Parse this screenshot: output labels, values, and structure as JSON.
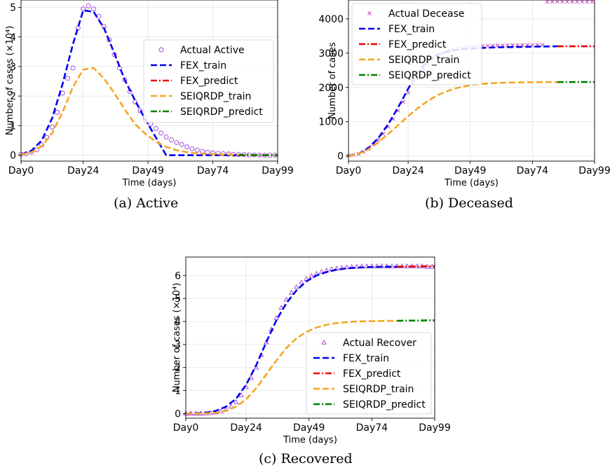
{
  "captions": [
    "(a)  Active",
    "(b)  Deceased",
    "(c)  Recovered"
  ],
  "chart_data": [
    {
      "type": "line",
      "title": "",
      "xlabel": "Time (days)",
      "ylabel": "Number of cases (×10⁴)",
      "xticks": [
        "Day0",
        "Day24",
        "Day49",
        "Day74",
        "Day99"
      ],
      "yticks": [
        "0",
        "1",
        "2",
        "3",
        "4",
        "5"
      ],
      "xlim": [
        0,
        99
      ],
      "ylim": [
        -0.2,
        5.25
      ],
      "grid": true,
      "legend_position": "center-right",
      "legend": [
        "Actual Active",
        "FEX_train",
        "FEX_predict",
        "SEIQRDP_train",
        "SEIQRDP_predict"
      ],
      "series": [
        {
          "name": "Actual Active",
          "style": "markers-circle",
          "color": "#9b3fd6",
          "x": [
            0,
            2,
            4,
            6,
            8,
            10,
            12,
            14,
            16,
            18,
            20,
            22,
            24,
            26,
            28,
            30,
            32,
            34,
            36,
            38,
            40,
            42,
            44,
            46,
            48,
            50,
            52,
            54,
            56,
            58,
            60,
            62,
            64,
            66,
            68,
            70,
            72,
            74,
            76,
            78,
            80,
            82,
            84,
            86,
            88,
            90,
            92,
            94,
            96,
            98
          ],
          "y": [
            0.03,
            0.05,
            0.1,
            0.18,
            0.35,
            0.6,
            0.95,
            1.45,
            2.1,
            2.6,
            2.95,
            4.3,
            4.95,
            5.05,
            4.95,
            4.7,
            4.35,
            3.9,
            3.4,
            2.95,
            2.55,
            2.15,
            1.8,
            1.5,
            1.25,
            1.05,
            0.9,
            0.75,
            0.62,
            0.52,
            0.43,
            0.36,
            0.28,
            0.22,
            0.17,
            0.13,
            0.1,
            0.08,
            0.06,
            0.05,
            0.04,
            0.03,
            0.02,
            0.02,
            0.01,
            0.01,
            0.0,
            0.0,
            0.0,
            0.0
          ]
        },
        {
          "name": "FEX_train",
          "style": "dashed",
          "color": "#0000ee",
          "x": [
            0,
            4,
            8,
            12,
            16,
            20,
            24,
            28,
            32,
            36,
            40,
            44,
            48,
            52,
            56,
            60,
            64,
            68,
            72,
            76,
            80,
            84
          ],
          "y": [
            0.02,
            0.15,
            0.5,
            1.25,
            2.4,
            3.75,
            4.9,
            4.85,
            4.3,
            3.45,
            2.55,
            1.85,
            1.2,
            0.6,
            0.0,
            0.0,
            0.0,
            0.0,
            0.0,
            0.0,
            0.0,
            0.0
          ]
        },
        {
          "name": "FEX_predict",
          "style": "dashdot",
          "color": "#ee0000",
          "x": [
            84,
            88,
            92,
            96,
            99
          ],
          "y": [
            0.0,
            0.0,
            0.0,
            0.0,
            0.0
          ]
        },
        {
          "name": "SEIQRDP_train",
          "style": "dashed",
          "color": "#f5a623",
          "x": [
            0,
            4,
            8,
            12,
            16,
            20,
            24,
            28,
            32,
            36,
            40,
            44,
            48,
            52,
            56,
            60,
            64,
            68,
            72,
            76,
            80,
            84
          ],
          "y": [
            0.02,
            0.1,
            0.3,
            0.75,
            1.45,
            2.3,
            2.9,
            2.95,
            2.6,
            2.1,
            1.55,
            1.05,
            0.72,
            0.46,
            0.28,
            0.17,
            0.1,
            0.06,
            0.04,
            0.03,
            0.02,
            0.01
          ]
        },
        {
          "name": "SEIQRDP_predict",
          "style": "dashdot",
          "color": "#008000",
          "x": [
            84,
            88,
            92,
            96,
            99
          ],
          "y": [
            0.01,
            0.01,
            0.0,
            0.0,
            0.0
          ]
        }
      ]
    },
    {
      "type": "line",
      "title": "",
      "xlabel": "Time (days)",
      "ylabel": "Number of cases",
      "xticks": [
        "Day0",
        "Day24",
        "Day49",
        "Day74",
        "Day99"
      ],
      "yticks": [
        "0",
        "1000",
        "2000",
        "3000",
        "4000"
      ],
      "xlim": [
        0,
        99
      ],
      "ylim": [
        -150,
        4550
      ],
      "grid": true,
      "legend_position": "upper-left",
      "legend": [
        "Actual Decease",
        "FEX_train",
        "FEX_predict",
        "SEIQRDP_train",
        "SEIQRDP_predict"
      ],
      "series": [
        {
          "name": "Actual Decease",
          "style": "markers-x",
          "color": "#c03fc0",
          "x": [
            0,
            2,
            4,
            6,
            8,
            10,
            12,
            14,
            16,
            18,
            20,
            22,
            24,
            26,
            28,
            30,
            32,
            34,
            36,
            38,
            40,
            42,
            44,
            46,
            48,
            50,
            52,
            54,
            56,
            58,
            60,
            62,
            64,
            66,
            68,
            70,
            72,
            74,
            76,
            78,
            80,
            82,
            84,
            86,
            88,
            90,
            92,
            94,
            96,
            98
          ],
          "y": [
            10,
            30,
            60,
            120,
            210,
            330,
            470,
            650,
            850,
            1080,
            1320,
            1580,
            1850,
            2120,
            2350,
            2540,
            2700,
            2830,
            2930,
            3000,
            3060,
            3100,
            3130,
            3160,
            3180,
            3195,
            3205,
            3210,
            3215,
            3220,
            3225,
            3228,
            3230,
            3232,
            3233,
            3234,
            3235,
            3236,
            3237,
            3238,
            4500,
            4500,
            4500,
            4500,
            4500,
            4500,
            4500,
            4500,
            4500,
            4500
          ]
        },
        {
          "name": "FEX_train",
          "style": "dashed",
          "color": "#0000ee",
          "x": [
            0,
            4,
            8,
            12,
            16,
            20,
            24,
            28,
            32,
            36,
            40,
            44,
            48,
            52,
            56,
            60,
            64,
            68,
            72,
            76,
            80,
            84
          ],
          "y": [
            0,
            60,
            230,
            520,
            930,
            1420,
            1960,
            2450,
            2780,
            2960,
            3050,
            3100,
            3130,
            3145,
            3160,
            3170,
            3175,
            3180,
            3185,
            3190,
            3195,
            3200
          ]
        },
        {
          "name": "FEX_predict",
          "style": "dashdot",
          "color": "#ee0000",
          "x": [
            84,
            88,
            92,
            96,
            99
          ],
          "y": [
            3200,
            3200,
            3200,
            3200,
            3200
          ]
        },
        {
          "name": "SEIQRDP_train",
          "style": "dashed",
          "color": "#f5a623",
          "x": [
            0,
            4,
            8,
            12,
            16,
            20,
            24,
            28,
            32,
            36,
            40,
            44,
            48,
            52,
            56,
            60,
            64,
            68,
            72,
            76,
            80,
            84
          ],
          "y": [
            0,
            60,
            190,
            400,
            640,
            900,
            1160,
            1400,
            1610,
            1780,
            1900,
            1990,
            2050,
            2090,
            2115,
            2130,
            2140,
            2145,
            2150,
            2152,
            2154,
            2155
          ]
        },
        {
          "name": "SEIQRDP_predict",
          "style": "dashdot",
          "color": "#008000",
          "x": [
            84,
            88,
            92,
            96,
            99
          ],
          "y": [
            2155,
            2156,
            2157,
            2158,
            2158
          ]
        }
      ]
    },
    {
      "type": "line",
      "title": "",
      "xlabel": "Time (days)",
      "ylabel": "Number of cases (×10⁴)",
      "xticks": [
        "Day0",
        "Day24",
        "Day49",
        "Day74",
        "Day99"
      ],
      "yticks": [
        "0",
        "1",
        "2",
        "3",
        "4",
        "5",
        "6"
      ],
      "xlim": [
        0,
        99
      ],
      "ylim": [
        -0.2,
        6.8
      ],
      "grid": true,
      "legend_position": "lower-right",
      "legend": [
        "Actual Recover",
        "FEX_train",
        "FEX_predict",
        "SEIQRDP_train",
        "SEIQRDP_predict"
      ],
      "series": [
        {
          "name": "Actual Recover",
          "style": "markers-triangle",
          "color": "#9b3fd6",
          "x": [
            0,
            2,
            4,
            6,
            8,
            10,
            12,
            14,
            16,
            18,
            20,
            22,
            24,
            26,
            28,
            30,
            32,
            34,
            36,
            38,
            40,
            42,
            44,
            46,
            48,
            50,
            52,
            54,
            56,
            58,
            60,
            62,
            64,
            66,
            68,
            70,
            72,
            74,
            76,
            78,
            80,
            82,
            84,
            86,
            88,
            90,
            92,
            94,
            96,
            98
          ],
          "y": [
            0,
            0,
            0,
            0,
            0.01,
            0.02,
            0.05,
            0.1,
            0.18,
            0.3,
            0.5,
            0.8,
            1.15,
            1.55,
            2.0,
            2.55,
            3.1,
            3.65,
            4.15,
            4.6,
            4.95,
            5.25,
            5.5,
            5.7,
            5.85,
            5.98,
            6.08,
            6.16,
            6.22,
            6.27,
            6.3,
            6.33,
            6.35,
            6.37,
            6.38,
            6.39,
            6.4,
            6.4,
            6.4,
            6.4,
            6.4,
            6.4,
            6.4,
            6.4,
            6.4,
            6.4,
            6.4,
            6.4,
            6.38,
            6.38
          ]
        },
        {
          "name": "FEX_train",
          "style": "dashed",
          "color": "#0000ee",
          "x": [
            0,
            4,
            8,
            12,
            16,
            20,
            24,
            28,
            32,
            36,
            40,
            44,
            48,
            52,
            56,
            60,
            64,
            68,
            72,
            76,
            80,
            84
          ],
          "y": [
            0,
            0.01,
            0.04,
            0.12,
            0.3,
            0.65,
            1.25,
            2.1,
            3.1,
            4.05,
            4.8,
            5.35,
            5.75,
            6.0,
            6.15,
            6.25,
            6.31,
            6.34,
            6.36,
            6.37,
            6.38,
            6.38
          ]
        },
        {
          "name": "FEX_predict",
          "style": "dashdot",
          "color": "#ee0000",
          "x": [
            84,
            88,
            92,
            96,
            99
          ],
          "y": [
            6.38,
            6.39,
            6.39,
            6.4,
            6.4
          ]
        },
        {
          "name": "SEIQRDP_train",
          "style": "dashed",
          "color": "#f5a623",
          "x": [
            0,
            4,
            8,
            12,
            16,
            20,
            24,
            28,
            32,
            36,
            40,
            44,
            48,
            52,
            56,
            60,
            64,
            68,
            72,
            76,
            80,
            84
          ],
          "y": [
            0,
            0.0,
            0.01,
            0.04,
            0.12,
            0.3,
            0.62,
            1.1,
            1.7,
            2.3,
            2.85,
            3.27,
            3.55,
            3.74,
            3.86,
            3.93,
            3.97,
            4.0,
            4.01,
            4.02,
            4.03,
            4.03
          ]
        },
        {
          "name": "SEIQRDP_predict",
          "style": "dashdot",
          "color": "#008000",
          "x": [
            84,
            88,
            92,
            96,
            99
          ],
          "y": [
            4.03,
            4.04,
            4.04,
            4.05,
            4.05
          ]
        }
      ]
    }
  ]
}
